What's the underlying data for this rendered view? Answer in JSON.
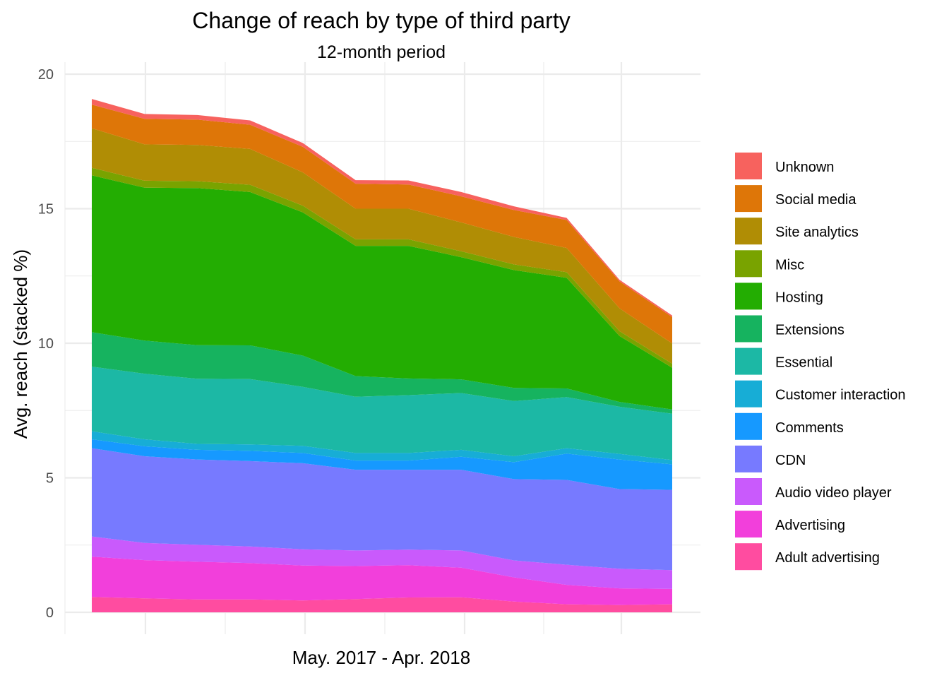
{
  "chart_data": {
    "type": "area",
    "stacked": true,
    "title": "Change of reach by type of third party",
    "subtitle": "12-month period",
    "xlabel": "May. 2017 - Apr. 2018",
    "ylabel": "Avg. reach (stacked %)",
    "ylim": [
      0,
      20
    ],
    "y_ticks": [
      "0",
      "5",
      "10",
      "15",
      "20"
    ],
    "grid": true,
    "legend_position": "right",
    "n_points": 12,
    "series": [
      {
        "name": "Adult advertising",
        "color": "#FF4CA0",
        "values": [
          0.57,
          0.52,
          0.48,
          0.48,
          0.44,
          0.49,
          0.55,
          0.56,
          0.4,
          0.3,
          0.27,
          0.3
        ]
      },
      {
        "name": "Advertising",
        "color": "#F23FDB",
        "values": [
          1.5,
          1.42,
          1.4,
          1.35,
          1.3,
          1.23,
          1.2,
          1.1,
          0.9,
          0.72,
          0.62,
          0.57
        ]
      },
      {
        "name": "Audio video player",
        "color": "#C95AFC",
        "values": [
          0.75,
          0.64,
          0.63,
          0.62,
          0.6,
          0.58,
          0.58,
          0.64,
          0.63,
          0.75,
          0.73,
          0.7
        ]
      },
      {
        "name": "CDN",
        "color": "#777AFF",
        "values": [
          3.28,
          3.22,
          3.17,
          3.17,
          3.2,
          3.0,
          2.97,
          3.0,
          3.02,
          3.15,
          2.96,
          2.98
        ]
      },
      {
        "name": "Comments",
        "color": "#1699FF",
        "values": [
          0.33,
          0.37,
          0.36,
          0.38,
          0.38,
          0.34,
          0.34,
          0.48,
          0.63,
          0.98,
          1.1,
          0.95
        ]
      },
      {
        "name": "Customer interaction",
        "color": "#17ADD6",
        "values": [
          0.3,
          0.26,
          0.22,
          0.24,
          0.27,
          0.28,
          0.28,
          0.26,
          0.22,
          0.2,
          0.21,
          0.16
        ]
      },
      {
        "name": "Essential",
        "color": "#1CB8A5",
        "values": [
          2.4,
          2.44,
          2.42,
          2.43,
          2.19,
          2.09,
          2.15,
          2.11,
          2.05,
          1.9,
          1.75,
          1.72
        ]
      },
      {
        "name": "Extensions",
        "color": "#16B35F",
        "values": [
          1.28,
          1.23,
          1.25,
          1.25,
          1.16,
          0.77,
          0.62,
          0.51,
          0.49,
          0.32,
          0.18,
          0.16
        ]
      },
      {
        "name": "Hosting",
        "color": "#23AD02",
        "values": [
          5.83,
          5.68,
          5.84,
          5.7,
          5.32,
          4.84,
          4.93,
          4.54,
          4.38,
          4.11,
          2.45,
          1.55
        ]
      },
      {
        "name": "Misc",
        "color": "#79A300",
        "values": [
          0.28,
          0.26,
          0.25,
          0.27,
          0.25,
          0.24,
          0.24,
          0.22,
          0.21,
          0.21,
          0.18,
          0.15
        ]
      },
      {
        "name": "Site analytics",
        "color": "#B08D05",
        "values": [
          1.47,
          1.35,
          1.35,
          1.33,
          1.24,
          1.14,
          1.14,
          1.07,
          1.02,
          0.9,
          0.85,
          0.75
        ]
      },
      {
        "name": "Social media",
        "color": "#DE7608",
        "values": [
          0.88,
          0.95,
          0.94,
          0.9,
          0.95,
          0.93,
          0.9,
          0.97,
          1.0,
          1.04,
          1.0,
          0.98
        ]
      },
      {
        "name": "Unknown",
        "color": "#F7625E",
        "values": [
          0.21,
          0.18,
          0.17,
          0.16,
          0.14,
          0.13,
          0.15,
          0.16,
          0.14,
          0.08,
          0.06,
          0.06
        ]
      }
    ]
  }
}
